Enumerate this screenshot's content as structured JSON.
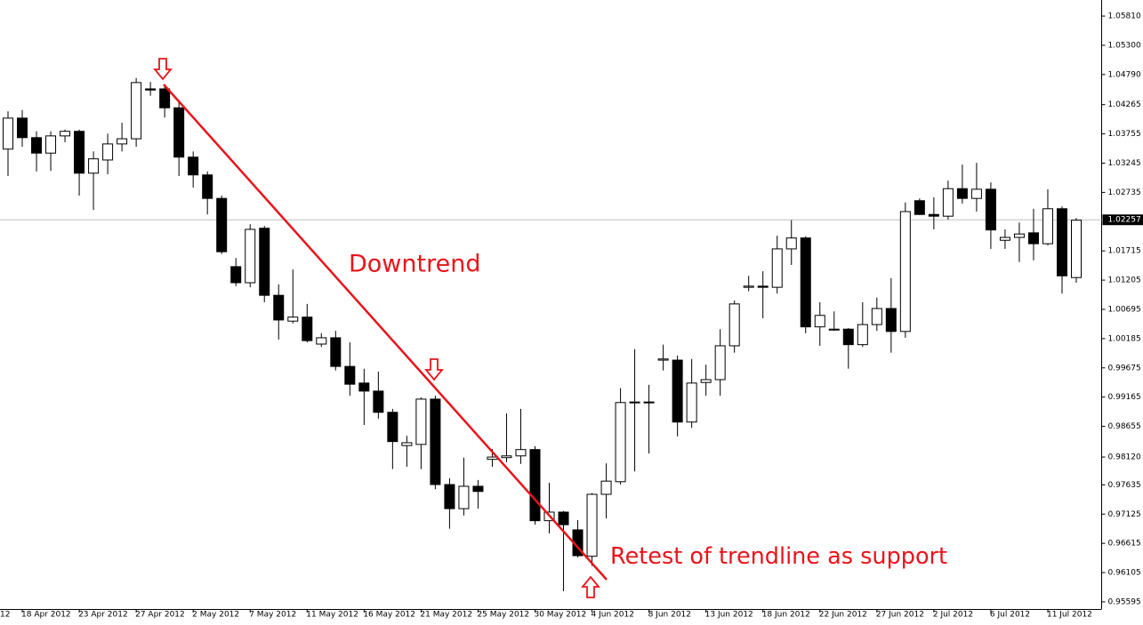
{
  "chart_data": {
    "type": "candlestick",
    "categories": [
      null,
      "18 Apr 2012",
      null,
      null,
      null,
      "23 Apr 2012",
      null,
      null,
      null,
      "27 Apr 2012",
      null,
      null,
      null,
      "2 May 2012",
      null,
      null,
      null,
      "7 May 2012",
      null,
      null,
      null,
      "11 May 2012",
      null,
      null,
      null,
      "16 May 2012",
      null,
      null,
      null,
      "21 May 2012",
      null,
      null,
      null,
      "25 May 2012",
      null,
      null,
      null,
      "30 May 2012",
      null,
      null,
      null,
      "4 Jun 2012",
      null,
      null,
      null,
      "8 Jun 2012",
      null,
      null,
      null,
      "13 Jun 2012",
      null,
      null,
      null,
      "18 Jun 2012",
      null,
      null,
      null,
      "22 Jun 2012",
      null,
      null,
      null,
      "27 Jun 2012",
      null,
      null,
      null,
      "2 Jul 2012",
      null,
      null,
      null,
      "6 Jul 2012",
      null,
      null,
      null,
      "11 Jul 2012",
      null,
      null
    ],
    "x_edge_label": "12",
    "open": [
      1.0349,
      1.0403,
      1.0369,
      1.0342,
      1.0372,
      1.038,
      1.0307,
      1.033,
      1.0358,
      1.0367,
      1.0454,
      1.0454,
      1.0421,
      1.0335,
      1.0304,
      1.0263,
      1.0144,
      1.0116,
      1.0211,
      1.0094,
      1.0049,
      1.0056,
      1.0009,
      1.002,
      0.997,
      0.9941,
      0.9927,
      0.989,
      0.9832,
      0.9834,
      0.9913,
      0.9764,
      0.9722,
      0.9761,
      0.9808,
      0.9811,
      0.9814,
      0.9825,
      0.9701,
      0.9716,
      0.9685,
      0.9639,
      0.9747,
      0.9769,
      0.9907,
      0.9908,
      0.9981,
      0.9981,
      0.9873,
      0.9942,
      0.9947,
      1.0006,
      1.0108,
      1.011,
      1.0108,
      1.0175,
      1.0194,
      1.0039,
      1.0035,
      1.0035,
      1.0008,
      1.0043,
      1.0071,
      1.0031,
      1.0259,
      1.0235,
      1.0232,
      1.028,
      1.0263,
      1.0279,
      1.019,
      1.0195,
      1.0203,
      1.0184,
      1.0245,
      1.0125
    ],
    "high": [
      1.0415,
      1.0417,
      1.038,
      1.038,
      1.0383,
      1.0383,
      1.0345,
      1.0376,
      1.0395,
      1.0473,
      1.0466,
      1.0462,
      1.0434,
      1.0345,
      1.031,
      1.0268,
      1.0159,
      1.0218,
      1.0215,
      1.0113,
      1.0139,
      1.0079,
      1.0028,
      1.0032,
      1.0012,
      0.9966,
      0.9961,
      0.9896,
      0.9849,
      0.9916,
      0.9919,
      0.9775,
      0.9811,
      0.9772,
      0.9826,
      0.9888,
      0.9896,
      0.9831,
      0.9767,
      0.9718,
      0.9702,
      0.9749,
      0.9801,
      0.9932,
      1.0,
      0.9938,
      1.0008,
      0.9989,
      0.9983,
      0.9973,
      1.0035,
      1.0085,
      1.0128,
      1.0136,
      1.0198,
      1.0225,
      1.0197,
      1.0082,
      1.0066,
      1.0037,
      1.0082,
      1.009,
      1.0124,
      1.0256,
      1.0263,
      1.0265,
      1.0294,
      1.0322,
      1.0325,
      1.0291,
      1.0209,
      1.0221,
      1.0245,
      1.0279,
      1.0249,
      1.0229
    ],
    "low": [
      1.0302,
      1.0353,
      1.031,
      1.0311,
      1.0361,
      1.0268,
      1.0243,
      1.0305,
      1.0345,
      1.0353,
      1.0442,
      1.0404,
      1.0302,
      1.0282,
      1.0235,
      1.0166,
      1.011,
      1.0108,
      1.0082,
      1.0017,
      1.0045,
      1.0012,
      1.0004,
      0.9963,
      0.9919,
      0.9868,
      0.9879,
      0.9791,
      0.9795,
      0.9791,
      0.9756,
      0.9687,
      0.971,
      0.9722,
      0.9795,
      0.9803,
      0.98,
      0.9694,
      0.9679,
      0.9578,
      0.9637,
      0.9622,
      0.9705,
      0.9764,
      0.9787,
      0.9818,
      0.9963,
      0.9848,
      0.9863,
      0.9919,
      0.9919,
      0.9994,
      1.0101,
      1.0054,
      1.0097,
      1.0147,
      1.0028,
      1.0006,
      1.0032,
      0.9966,
      1.0004,
      1.0032,
      0.9994,
      1.002,
      1.0234,
      1.0209,
      1.0226,
      1.0254,
      1.024,
      1.0175,
      1.0175,
      1.0152,
      1.0155,
      1.0181,
      1.0097,
      1.0116
    ],
    "close": [
      1.0403,
      1.0369,
      1.0342,
      1.0372,
      1.038,
      1.0307,
      1.0332,
      1.0358,
      1.0367,
      1.0465,
      1.0452,
      1.0421,
      1.0335,
      1.0304,
      1.0263,
      1.017,
      1.0116,
      1.0209,
      1.0094,
      1.0051,
      1.0056,
      1.0015,
      1.002,
      0.997,
      0.9939,
      0.9927,
      0.989,
      0.9839,
      0.9837,
      0.9913,
      0.9764,
      0.9722,
      0.9761,
      0.9752,
      0.9812,
      0.9814,
      0.9825,
      0.9701,
      0.9716,
      0.9694,
      0.964,
      0.9747,
      0.977,
      0.9907,
      0.9908,
      0.9907,
      0.9983,
      0.9873,
      0.9941,
      0.9947,
      1.0006,
      1.0079,
      1.011,
      1.0108,
      1.0175,
      1.0194,
      1.0039,
      1.0059,
      1.0034,
      1.0008,
      1.0043,
      1.0071,
      1.0031,
      1.024,
      1.0235,
      1.0232,
      1.028,
      1.0263,
      1.0279,
      1.0208,
      1.0195,
      1.0201,
      1.0184,
      1.0245,
      1.0128,
      1.0225
    ],
    "up_color": "#ffffff",
    "down_color": "#000000",
    "ylim": [
      0.9547,
      1.0609
    ],
    "yticks": [
      {
        "value": 1.0581,
        "label": "1.05810"
      },
      {
        "value": 1.053,
        "label": "1.05300"
      },
      {
        "value": 1.0479,
        "label": "1.04790"
      },
      1.04265,
      1.03755,
      1.03245,
      1.02735,
      1.01715,
      1.01205,
      1.00695,
      1.00185,
      0.99675,
      0.99165,
      0.98655,
      {
        "value": 0.9812,
        "label": "0.98120"
      },
      0.97635,
      0.97125,
      0.96615,
      0.96105,
      0.95595
    ],
    "current_price": 1.02257,
    "annotations": [
      "Downtrend",
      "Retest of trendline as support"
    ],
    "annotation_color": "#e8141b"
  }
}
